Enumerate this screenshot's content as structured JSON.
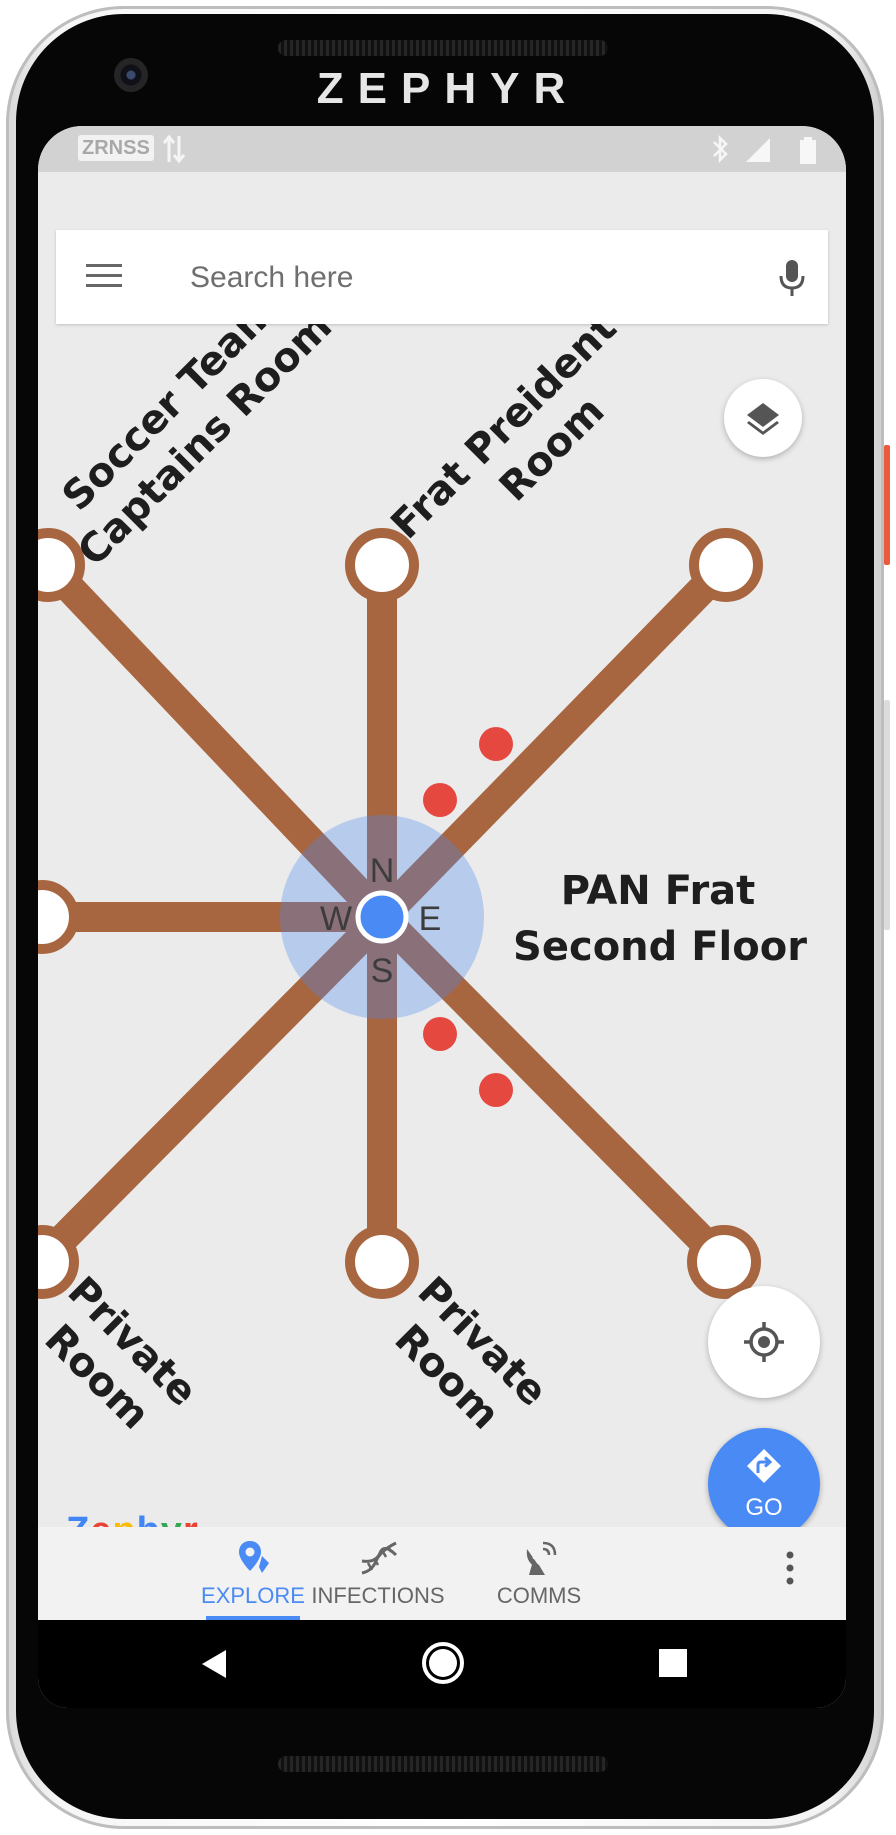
{
  "device": {
    "brand_title": "ZEPHYR"
  },
  "status_bar": {
    "carrier": "ZRNSS"
  },
  "search": {
    "placeholder": "Search here"
  },
  "map": {
    "center_label_line1": "PAN Frat",
    "center_label_line2": "Second Floor",
    "rooms": {
      "top_left_line1": "Soccer Team",
      "top_left_line2": "Captains Room",
      "top_center_line1": "Frat Preident's",
      "top_center_line2": "Room",
      "bottom_left_line1": "Private",
      "bottom_left_line2": "Room",
      "bottom_center_line1": "Private",
      "bottom_center_line2": "Room"
    },
    "compass": {
      "north": "N",
      "south": "S",
      "east": "E",
      "west": "W"
    },
    "corridor_color": "#a86640",
    "infection_color": "#e5483f",
    "location_color": "#4a8af4"
  },
  "go_button": {
    "label": "GO"
  },
  "logo": {
    "letters": [
      "Z",
      "e",
      "p",
      "h",
      "y",
      "r"
    ],
    "colors": [
      "#4285f4",
      "#ea4335",
      "#fbbc05",
      "#4285f4",
      "#34a853",
      "#ea4335"
    ]
  },
  "bottom_nav": {
    "tabs": [
      {
        "label": "EXPLORE",
        "icon": "map-pin-icon",
        "active": true
      },
      {
        "label": "INFECTIONS",
        "icon": "dna-icon",
        "active": false
      },
      {
        "label": "COMMS",
        "icon": "satellite-dish-icon",
        "active": false
      }
    ]
  }
}
